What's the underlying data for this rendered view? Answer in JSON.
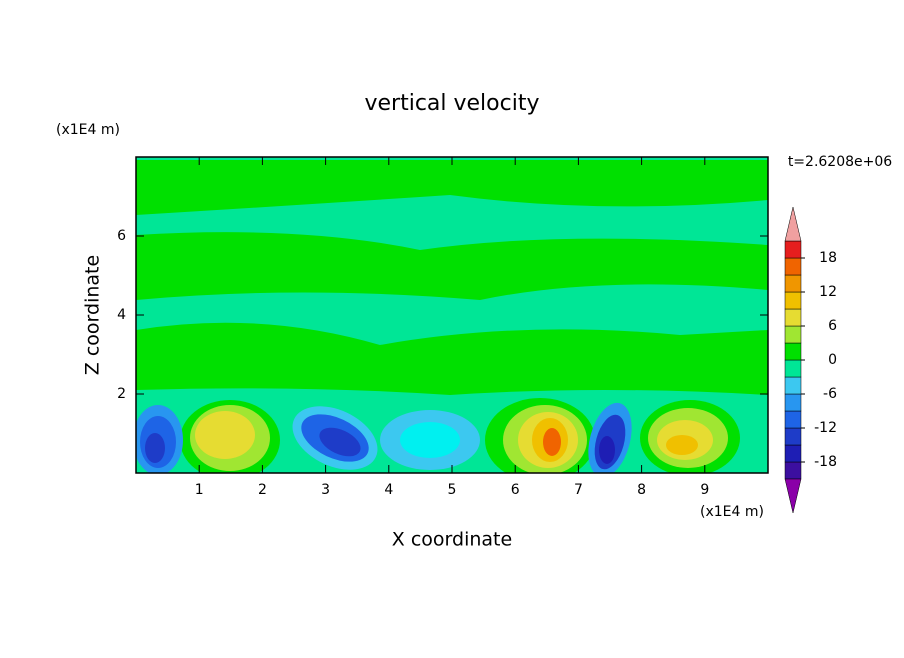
{
  "chart_data": {
    "type": "contour",
    "title": "vertical velocity",
    "x_label": "X coordinate",
    "y_label": "Z coordinate",
    "x_unit": "(x1E4 m)",
    "y_unit": "(x1E4 m)",
    "annotation": "t=2.6208e+06",
    "xlim": [
      0,
      10
    ],
    "xticks": [
      1,
      2,
      3,
      4,
      5,
      6,
      7,
      8,
      9
    ],
    "ylim": [
      0,
      8
    ],
    "yticks": [
      2,
      4,
      6
    ],
    "colorbar": {
      "levels": [
        -21,
        -18,
        -15,
        -12,
        -9,
        -6,
        -3,
        0,
        3,
        6,
        9,
        12,
        15,
        18,
        21
      ],
      "colors": [
        "#3c0fa0",
        "#1e1eb4",
        "#1e3cc8",
        "#1e64e6",
        "#2896f0",
        "#3cc8f0",
        "#00e696",
        "#00e000",
        "#a0e632",
        "#e6dc32",
        "#f0c000",
        "#f09600",
        "#f06400",
        "#e61e1e"
      ],
      "under_color": "#8a00a8",
      "over_color": "#f0a0a0",
      "ticks": [
        -18,
        -12,
        -6,
        0,
        6,
        12,
        18
      ]
    }
  }
}
